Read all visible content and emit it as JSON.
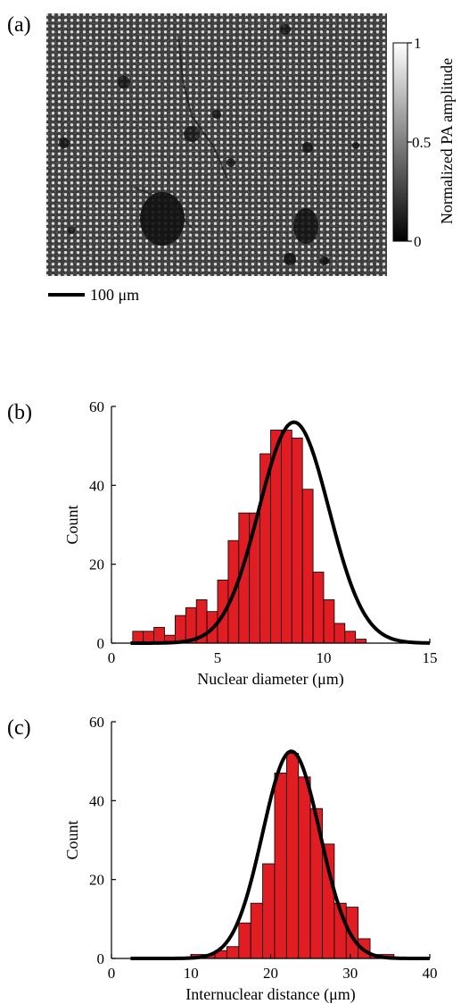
{
  "panel_a": {
    "label": "(a)",
    "colorbar": {
      "label": "Normalized PA amplitude",
      "ticks": [
        "1",
        "0.5",
        "0"
      ]
    },
    "scalebar_label": "100 μm"
  },
  "chart_data": [
    {
      "type": "bar",
      "panel": "(b)",
      "title": "",
      "xlabel": "Nuclear diameter (μm)",
      "ylabel": "Count",
      "xlim": [
        0,
        15
      ],
      "ylim": [
        0,
        60
      ],
      "xticks": [
        "0",
        "5",
        "10",
        "15"
      ],
      "yticks": [
        "0",
        "20",
        "40",
        "60"
      ],
      "bin_width": 0.5,
      "bin_starts": [
        1,
        1.5,
        2,
        2.5,
        3,
        3.5,
        4,
        4.5,
        5,
        5.5,
        6,
        6.5,
        7,
        7.5,
        8,
        8.5,
        9,
        9.5,
        10,
        10.5,
        11,
        11.5,
        12,
        12.5
      ],
      "values": [
        3,
        3,
        4,
        2,
        7,
        9,
        11,
        8,
        16,
        26,
        33,
        33,
        48,
        54,
        54,
        52,
        39,
        18,
        11,
        5,
        3,
        1,
        0,
        0
      ],
      "fit": {
        "type": "gaussian",
        "mean": 8.6,
        "sigma": 1.65,
        "peak": 56
      }
    },
    {
      "type": "bar",
      "panel": "(c)",
      "title": "",
      "xlabel": "Internuclear distance (μm)",
      "ylabel": "Count",
      "xlim": [
        0,
        40
      ],
      "ylim": [
        0,
        60
      ],
      "xticks": [
        "0",
        "10",
        "20",
        "30",
        "40"
      ],
      "yticks": [
        "0",
        "20",
        "40",
        "60"
      ],
      "bin_width": 1.5,
      "bin_starts": [
        10,
        11.5,
        13,
        14.5,
        16,
        17.5,
        19,
        20.5,
        22,
        23.5,
        25,
        26.5,
        28,
        29.5,
        31,
        32.5,
        34,
        35.5
      ],
      "values": [
        1,
        1,
        2,
        3,
        9,
        14,
        24,
        47,
        52,
        46,
        38,
        29,
        14,
        13,
        5,
        1,
        1,
        0
      ],
      "fit": {
        "type": "gaussian",
        "mean": 22.6,
        "sigma": 3.6,
        "peak": 52.5
      }
    }
  ]
}
